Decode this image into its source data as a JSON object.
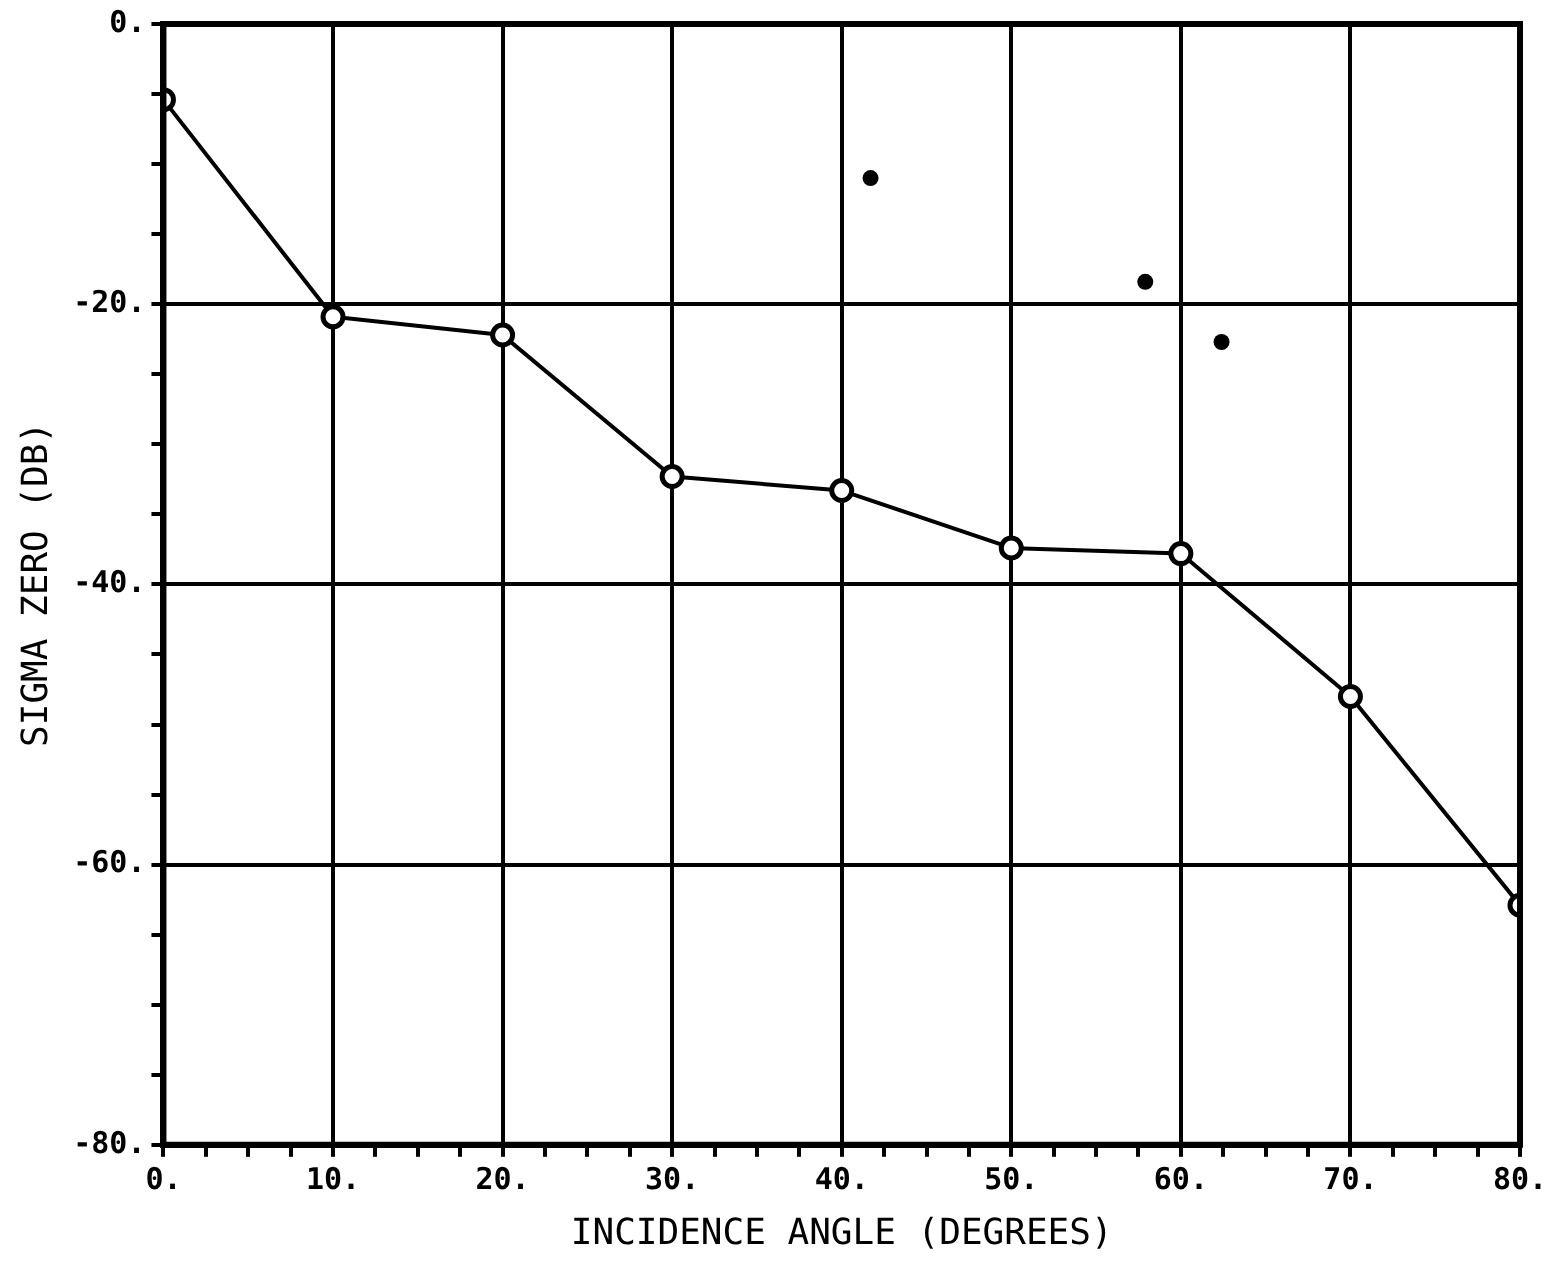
{
  "chart_data": {
    "type": "line",
    "xlabel": "INCIDENCE ANGLE (DEGREES)",
    "ylabel": "SIGMA ZERO (DB)",
    "xlim": [
      0,
      80
    ],
    "ylim": [
      -80,
      0
    ],
    "xticks": [
      {
        "value": 0,
        "label": "0."
      },
      {
        "value": 2.5,
        "label": null
      },
      {
        "value": 5,
        "label": null
      },
      {
        "value": 7.5,
        "label": null
      },
      {
        "value": 10,
        "label": "10."
      },
      {
        "value": 12.5,
        "label": null
      },
      {
        "value": 15,
        "label": null
      },
      {
        "value": 17.5,
        "label": null
      },
      {
        "value": 20,
        "label": "20."
      },
      {
        "value": 22.5,
        "label": null
      },
      {
        "value": 25,
        "label": null
      },
      {
        "value": 27.5,
        "label": null
      },
      {
        "value": 30,
        "label": "30."
      },
      {
        "value": 32.5,
        "label": null
      },
      {
        "value": 35,
        "label": null
      },
      {
        "value": 37.5,
        "label": null
      },
      {
        "value": 40,
        "label": "40."
      },
      {
        "value": 42.5,
        "label": null
      },
      {
        "value": 45,
        "label": null
      },
      {
        "value": 47.5,
        "label": null
      },
      {
        "value": 50,
        "label": "50."
      },
      {
        "value": 52.5,
        "label": null
      },
      {
        "value": 55,
        "label": null
      },
      {
        "value": 57.5,
        "label": null
      },
      {
        "value": 60,
        "label": "60."
      },
      {
        "value": 62.5,
        "label": null
      },
      {
        "value": 65,
        "label": null
      },
      {
        "value": 67.5,
        "label": null
      },
      {
        "value": 70,
        "label": "70."
      },
      {
        "value": 72.5,
        "label": null
      },
      {
        "value": 75,
        "label": null
      },
      {
        "value": 77.5,
        "label": null
      },
      {
        "value": 80,
        "label": "80."
      }
    ],
    "yticks": [
      {
        "value": -80,
        "label": "-80."
      },
      {
        "value": -75,
        "label": null
      },
      {
        "value": -70,
        "label": null
      },
      {
        "value": -65,
        "label": null
      },
      {
        "value": -60,
        "label": "-60."
      },
      {
        "value": -55,
        "label": null
      },
      {
        "value": -50,
        "label": null
      },
      {
        "value": -45,
        "label": null
      },
      {
        "value": -40,
        "label": "-40."
      },
      {
        "value": -35,
        "label": null
      },
      {
        "value": -30,
        "label": null
      },
      {
        "value": -25,
        "label": null
      },
      {
        "value": -20,
        "label": "-20."
      },
      {
        "value": -15,
        "label": null
      },
      {
        "value": -10,
        "label": null
      },
      {
        "value": -5,
        "label": null
      },
      {
        "value": 0,
        "label": "0."
      }
    ],
    "grid": true,
    "legend": false,
    "series": [
      {
        "color": "#000000",
        "marker": "circle",
        "x": [
          0,
          10,
          20,
          30,
          40,
          50,
          60,
          70,
          80
        ],
        "values": [
          -5.4,
          -20.9,
          -22.2,
          -32.3,
          -33.3,
          -37.4,
          -37.8,
          -48.0,
          -62.9
        ]
      },
      {
        "type": "scatter",
        "color": "#000000",
        "marker": "circle",
        "x": [
          41.7,
          57.9,
          62.4
        ],
        "values": [
          -11.0,
          -18.4,
          -22.7
        ]
      }
    ]
  }
}
